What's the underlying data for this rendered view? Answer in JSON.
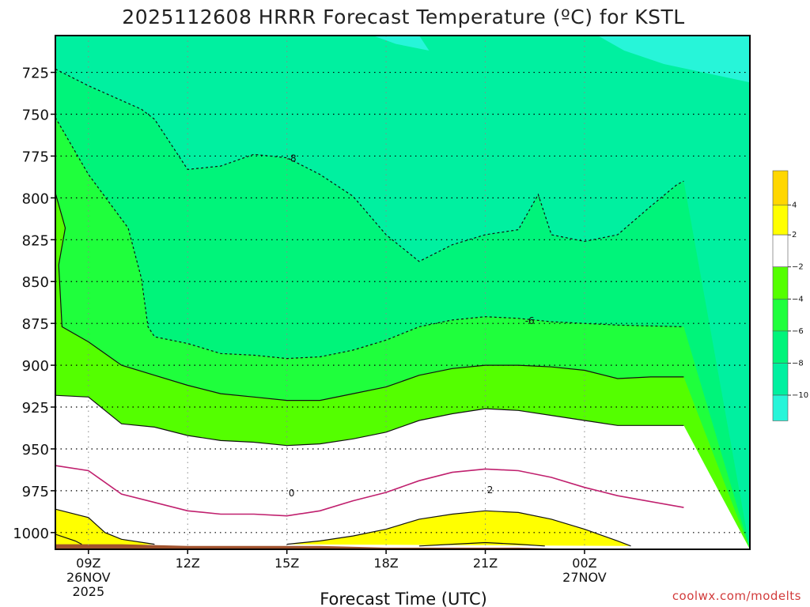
{
  "chart_data": {
    "type": "heatmap",
    "title": "2025112608 HRRR Forecast Temperature (ºC) for KSTL",
    "xlabel": "Forecast Time (UTC)",
    "ylabel": "",
    "credit": "coolwx.com/modelts",
    "x_hours_range": [
      8,
      29
    ],
    "y_pressure_range": [
      1010,
      703
    ],
    "y_ticks": [
      {
        "label": "725",
        "value": 725
      },
      {
        "label": "750",
        "value": 750
      },
      {
        "label": "775",
        "value": 775
      },
      {
        "label": "800",
        "value": 800
      },
      {
        "label": "825",
        "value": 825
      },
      {
        "label": "850",
        "value": 850
      },
      {
        "label": "875",
        "value": 875
      },
      {
        "label": "900",
        "value": 900
      },
      {
        "label": "925",
        "value": 925
      },
      {
        "label": "950",
        "value": 950
      },
      {
        "label": "975",
        "value": 975
      },
      {
        "label": "1000",
        "value": 1000
      }
    ],
    "x_ticks": [
      {
        "label": "09Z",
        "sub1": "26NOV",
        "sub2": "2025",
        "hour": 9
      },
      {
        "label": "12Z",
        "sub1": "",
        "sub2": "",
        "hour": 12
      },
      {
        "label": "15Z",
        "sub1": "",
        "sub2": "",
        "hour": 15
      },
      {
        "label": "18Z",
        "sub1": "",
        "sub2": "",
        "hour": 18
      },
      {
        "label": "21Z",
        "sub1": "",
        "sub2": "",
        "hour": 21
      },
      {
        "label": "00Z",
        "sub1": "27NOV",
        "sub2": "",
        "hour": 24
      }
    ],
    "colorbar": [
      {
        "from": 4,
        "to": 6,
        "color": "#ffd700"
      },
      {
        "from": 2,
        "to": 4,
        "color": "#ffff00"
      },
      {
        "from": -2,
        "to": 2,
        "color": "#ffffff"
      },
      {
        "from": -4,
        "to": -2,
        "color": "#54ff00"
      },
      {
        "from": -6,
        "to": -4,
        "color": "#1fff3c"
      },
      {
        "from": -8,
        "to": -6,
        "color": "#00f47a"
      },
      {
        "from": -10,
        "to": -8,
        "color": "#00f0a0"
      },
      {
        "from": -12,
        "to": -10,
        "color": "#27f5d9"
      }
    ],
    "colorbar_ticks": [
      "4",
      "2",
      "−2",
      "−4",
      "−6",
      "−8",
      "−10"
    ],
    "contour_labels": [
      {
        "text": "-8",
        "hour": 15.0,
        "p": 776
      },
      {
        "text": "-6",
        "hour": 22.2,
        "p": 873
      },
      {
        "text": "0",
        "hour": 15.0,
        "p": 976
      },
      {
        "text": "2",
        "hour": 21.0,
        "p": 974
      }
    ],
    "isotherms": [
      {
        "temp": -8,
        "points": [
          [
            8,
            723
          ],
          [
            9,
            733
          ],
          [
            10.6,
            747
          ],
          [
            11,
            753
          ],
          [
            12,
            783
          ],
          [
            13,
            781
          ],
          [
            14,
            774
          ],
          [
            15,
            776
          ],
          [
            16,
            786
          ],
          [
            17,
            799
          ],
          [
            18,
            822
          ],
          [
            19,
            838
          ],
          [
            20,
            828
          ],
          [
            21,
            822
          ],
          [
            22,
            819
          ],
          [
            22.6,
            798
          ],
          [
            23,
            822
          ],
          [
            24,
            826
          ],
          [
            25,
            822
          ],
          [
            26,
            805
          ],
          [
            26.8,
            792
          ],
          [
            27,
            790
          ]
        ]
      },
      {
        "temp": -6,
        "points": [
          [
            8,
            752
          ],
          [
            9,
            786
          ],
          [
            10.2,
            818
          ],
          [
            10.6,
            848
          ],
          [
            10.8,
            877
          ],
          [
            11,
            883
          ],
          [
            12,
            887
          ],
          [
            13,
            893
          ],
          [
            14,
            894
          ],
          [
            15,
            896
          ],
          [
            16,
            895
          ],
          [
            17,
            891
          ],
          [
            18,
            885
          ],
          [
            19,
            877
          ],
          [
            20,
            873
          ],
          [
            21,
            871
          ],
          [
            22,
            872
          ],
          [
            23,
            874
          ],
          [
            24,
            875
          ],
          [
            25,
            876
          ],
          [
            27,
            877
          ]
        ]
      },
      {
        "temp": -4,
        "points": [
          [
            8,
            797
          ],
          [
            8.3,
            818
          ],
          [
            8.1,
            840
          ],
          [
            8.2,
            877
          ],
          [
            9,
            886
          ],
          [
            10,
            900
          ],
          [
            11,
            906
          ],
          [
            12,
            912
          ],
          [
            13,
            917
          ],
          [
            14,
            919
          ],
          [
            15,
            921
          ],
          [
            16,
            921
          ],
          [
            17,
            917
          ],
          [
            18,
            913
          ],
          [
            19,
            906
          ],
          [
            20,
            902
          ],
          [
            21,
            900
          ],
          [
            22,
            900
          ],
          [
            23,
            901
          ],
          [
            24,
            903
          ],
          [
            25,
            908
          ],
          [
            26,
            907
          ],
          [
            27,
            907
          ]
        ]
      },
      {
        "temp": -2,
        "points": [
          [
            8,
            918
          ],
          [
            9,
            919
          ],
          [
            10,
            935
          ],
          [
            11,
            937
          ],
          [
            12,
            942
          ],
          [
            13,
            945
          ],
          [
            14,
            946
          ],
          [
            15,
            948
          ],
          [
            16,
            947
          ],
          [
            17,
            944
          ],
          [
            18,
            940
          ],
          [
            19,
            933
          ],
          [
            20,
            929
          ],
          [
            21,
            926
          ],
          [
            22,
            927
          ],
          [
            23,
            930
          ],
          [
            24,
            933
          ],
          [
            25,
            936
          ],
          [
            27,
            936
          ]
        ]
      },
      {
        "temp": 0,
        "points": [
          [
            8,
            960
          ],
          [
            9,
            963
          ],
          [
            10,
            977
          ],
          [
            11,
            982
          ],
          [
            12,
            987
          ],
          [
            13,
            989
          ],
          [
            14,
            989
          ],
          [
            15,
            990
          ],
          [
            16,
            987
          ],
          [
            17,
            981
          ],
          [
            18,
            976
          ],
          [
            19,
            969
          ],
          [
            20,
            964
          ],
          [
            21,
            962
          ],
          [
            22,
            963
          ],
          [
            23,
            967
          ],
          [
            24,
            973
          ],
          [
            25,
            978
          ],
          [
            27,
            985
          ]
        ]
      },
      {
        "temp": 2,
        "points": [
          [
            8,
            986
          ],
          [
            9,
            991
          ],
          [
            9.5,
            1000
          ],
          [
            10,
            1004
          ],
          [
            11,
            1007
          ]
        ]
      },
      {
        "temp": 2,
        "points": [
          [
            15,
            1007
          ],
          [
            16,
            1005
          ],
          [
            17,
            1002
          ],
          [
            18,
            998
          ],
          [
            19,
            992
          ],
          [
            20,
            989
          ],
          [
            21,
            987
          ],
          [
            22,
            988
          ],
          [
            23,
            992
          ],
          [
            24,
            998
          ],
          [
            25,
            1005
          ],
          [
            25.4,
            1008
          ]
        ]
      },
      {
        "temp": 4,
        "points": [
          [
            8,
            1001
          ],
          [
            8.6,
            1005
          ],
          [
            8.8,
            1007
          ]
        ]
      },
      {
        "temp": 4,
        "points": [
          [
            19,
            1008
          ],
          [
            20,
            1007
          ],
          [
            21,
            1006
          ],
          [
            22,
            1007
          ],
          [
            22.8,
            1008
          ]
        ]
      }
    ],
    "terrain_top": [
      [
        8,
        1007
      ],
      [
        10,
        1007
      ],
      [
        12,
        1008
      ],
      [
        14,
        1008
      ],
      [
        15,
        1008
      ],
      [
        16,
        1008
      ],
      [
        18,
        1009
      ],
      [
        20,
        1009
      ],
      [
        22,
        1009
      ],
      [
        24,
        1010
      ],
      [
        27,
        1010
      ]
    ]
  }
}
